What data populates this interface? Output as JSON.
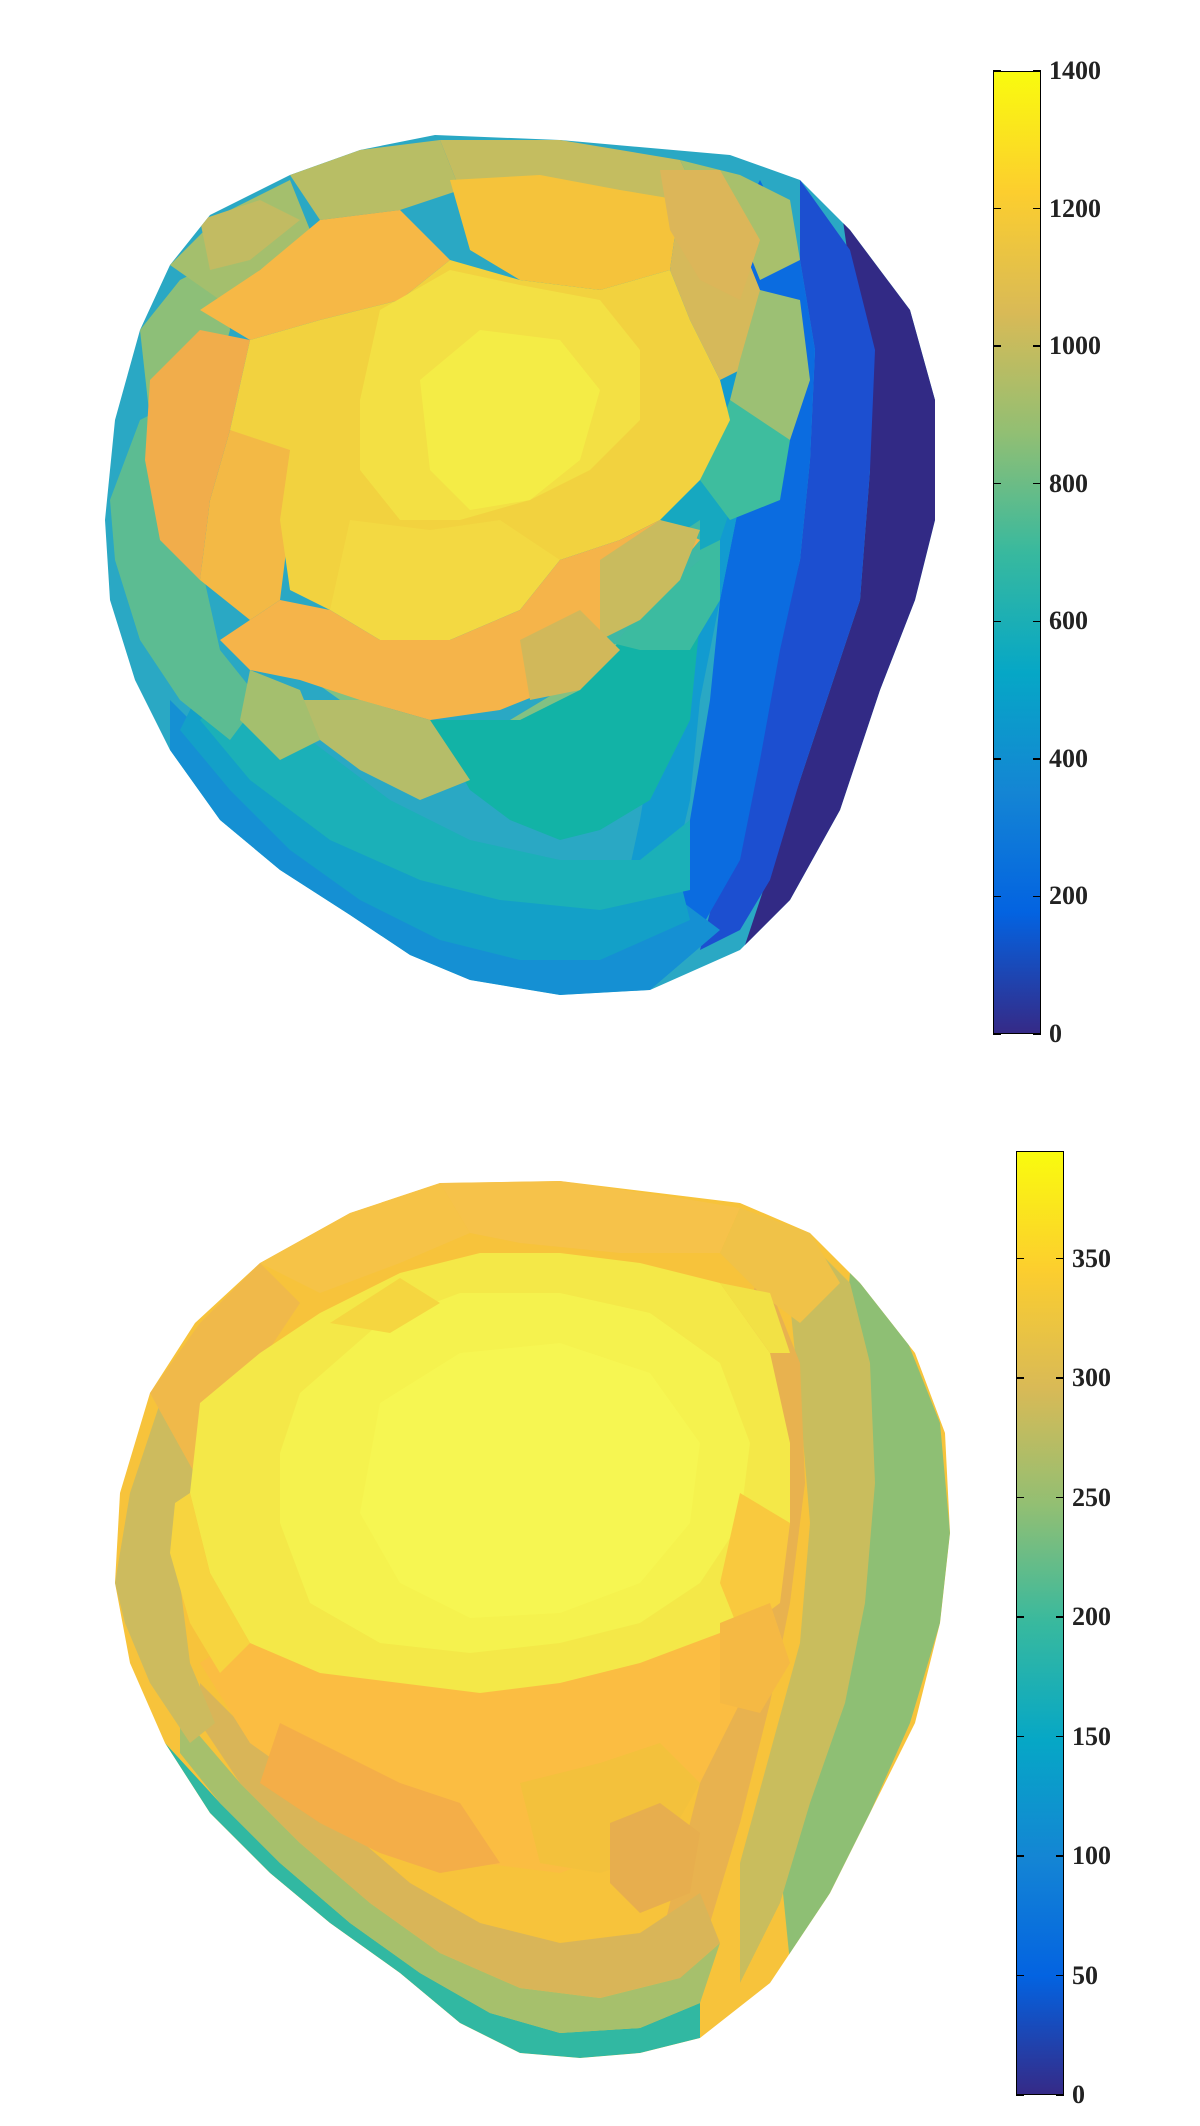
{
  "figures": [
    {
      "id": "top",
      "colorbar": {
        "min": 0,
        "max": 1400,
        "ticks": [
          "0",
          "200",
          "400",
          "600",
          "800",
          "1000",
          "1200",
          "1400"
        ],
        "tick_values": [
          0,
          200,
          400,
          600,
          800,
          1000,
          1200,
          1400
        ],
        "colormap": "parula"
      }
    },
    {
      "id": "bottom",
      "colorbar": {
        "min": 0,
        "max": 395,
        "ticks": [
          "0",
          "50",
          "100",
          "150",
          "200",
          "250",
          "300",
          "350"
        ],
        "tick_values": [
          0,
          50,
          100,
          150,
          200,
          250,
          300,
          350
        ],
        "colormap": "parula"
      }
    }
  ],
  "colors": {
    "parula_stops": [
      "#352a87",
      "#0363e1",
      "#1485d4",
      "#06a7c6",
      "#38b99e",
      "#92bf73",
      "#d9ba56",
      "#fcce2e",
      "#f9fb0e"
    ]
  }
}
